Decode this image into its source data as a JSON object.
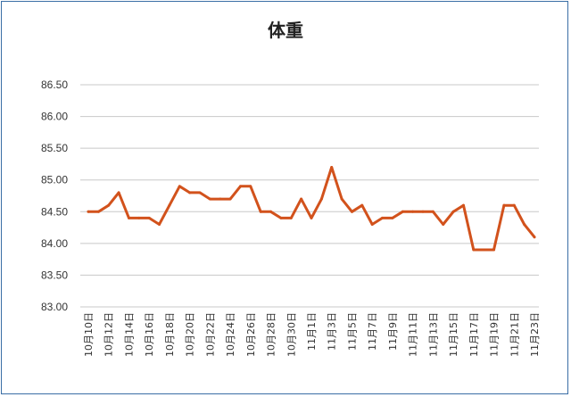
{
  "chart_data": {
    "type": "line",
    "title": "体重",
    "xlabel": "",
    "ylabel": "",
    "ylim": [
      83.0,
      86.5
    ],
    "yticks": [
      "83.00",
      "83.50",
      "84.00",
      "84.50",
      "85.00",
      "85.50",
      "86.00",
      "86.50"
    ],
    "grid": true,
    "legend": "none",
    "line_color": "#d2521c",
    "categories": [
      "10月10日",
      "10月11日",
      "10月12日",
      "10月13日",
      "10月14日",
      "10月15日",
      "10月16日",
      "10月17日",
      "10月18日",
      "10月19日",
      "10月20日",
      "10月21日",
      "10月22日",
      "10月23日",
      "10月24日",
      "10月25日",
      "10月26日",
      "10月27日",
      "10月28日",
      "10月29日",
      "10月30日",
      "10月31日",
      "11月1日",
      "11月2日",
      "11月3日",
      "11月4日",
      "11月5日",
      "11月6日",
      "11月7日",
      "11月8日",
      "11月9日",
      "11月10日",
      "11月11日",
      "11月12日",
      "11月13日",
      "11月14日",
      "11月15日",
      "11月16日",
      "11月17日",
      "11月18日",
      "11月19日",
      "11月20日",
      "11月21日",
      "11月22日",
      "11月23日"
    ],
    "tick_labels": [
      "10月10日",
      "10月12日",
      "10月14日",
      "10月16日",
      "10月18日",
      "10月20日",
      "10月22日",
      "10月24日",
      "10月26日",
      "10月28日",
      "10月30日",
      "11月1日",
      "11月3日",
      "11月5日",
      "11月7日",
      "11月9日",
      "11月11日",
      "11月13日",
      "11月15日",
      "11月17日",
      "11月19日",
      "11月21日",
      "11月23日"
    ],
    "series": [
      {
        "values": [
          84.5,
          84.5,
          84.6,
          84.8,
          84.4,
          84.4,
          84.4,
          84.3,
          84.6,
          84.9,
          84.8,
          84.8,
          84.7,
          84.7,
          84.7,
          84.9,
          84.9,
          84.5,
          84.5,
          84.4,
          84.4,
          84.7,
          84.4,
          84.7,
          85.2,
          84.7,
          84.5,
          84.6,
          84.3,
          84.4,
          84.4,
          84.5,
          84.5,
          84.5,
          84.5,
          84.3,
          84.5,
          84.6,
          83.9,
          83.9,
          83.9,
          84.6,
          84.6,
          84.3,
          84.1
        ]
      }
    ]
  }
}
